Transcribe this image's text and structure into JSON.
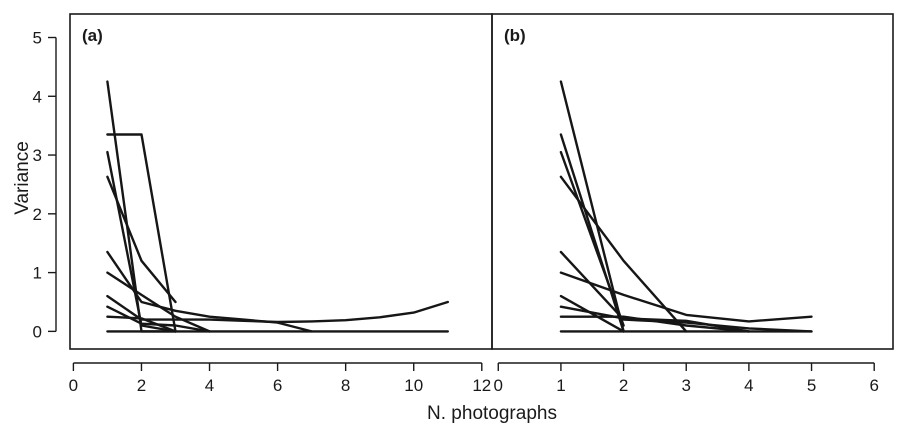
{
  "chart_data": {
    "type": "line",
    "xlabel": "N. photographs",
    "ylabel": "Variance",
    "ylim": [
      0,
      5
    ],
    "yticks": [
      0,
      1,
      2,
      3,
      4,
      5
    ],
    "grid": false,
    "legend": "none",
    "colors": {
      "line": "#161616",
      "frame": "#1a1a1a",
      "background": "#ffffff"
    },
    "panels": [
      {
        "label": "(a)",
        "xlim": [
          0,
          12
        ],
        "xticks": [
          0,
          2,
          4,
          6,
          8,
          10,
          12
        ],
        "series": [
          {
            "x": [
              1,
              2,
              3
            ],
            "y": [
              4.25,
              0.0,
              0.0
            ]
          },
          {
            "x": [
              1,
              2,
              3
            ],
            "y": [
              3.35,
              3.35,
              0.0
            ]
          },
          {
            "x": [
              1,
              2,
              3
            ],
            "y": [
              3.05,
              0.1,
              0.0
            ]
          },
          {
            "x": [
              1,
              2,
              3
            ],
            "y": [
              2.63,
              1.2,
              0.5
            ]
          },
          {
            "x": [
              1,
              2,
              3,
              4,
              5,
              6,
              7
            ],
            "y": [
              1.35,
              0.5,
              0.35,
              0.25,
              0.2,
              0.15,
              0.0
            ]
          },
          {
            "x": [
              1,
              2,
              3,
              4
            ],
            "y": [
              1.0,
              0.62,
              0.25,
              0.0
            ]
          },
          {
            "x": [
              1,
              2,
              3,
              4,
              5,
              6,
              7,
              8,
              9,
              10,
              11
            ],
            "y": [
              0.6,
              0.2,
              0.2,
              0.2,
              0.18,
              0.16,
              0.17,
              0.19,
              0.24,
              0.32,
              0.5
            ]
          },
          {
            "x": [
              1,
              2,
              3,
              4
            ],
            "y": [
              0.42,
              0.13,
              0.1,
              0.0
            ]
          },
          {
            "x": [
              1,
              2,
              3
            ],
            "y": [
              0.25,
              0.22,
              0.0
            ]
          },
          {
            "x": [
              1,
              11
            ],
            "y": [
              0.0,
              0.0
            ]
          }
        ]
      },
      {
        "label": "(b)",
        "xlim": [
          0,
          6
        ],
        "xticks": [
          0,
          1,
          2,
          3,
          4,
          5,
          6
        ],
        "series": [
          {
            "x": [
              1,
              2
            ],
            "y": [
              4.25,
              0.0
            ]
          },
          {
            "x": [
              1,
              2
            ],
            "y": [
              3.35,
              0.0
            ]
          },
          {
            "x": [
              1,
              2
            ],
            "y": [
              3.05,
              0.1
            ]
          },
          {
            "x": [
              1,
              2,
              3
            ],
            "y": [
              2.63,
              1.2,
              0.0
            ]
          },
          {
            "x": [
              1,
              2,
              3,
              4,
              5
            ],
            "y": [
              1.35,
              0.2,
              0.15,
              0.05,
              0.0
            ]
          },
          {
            "x": [
              1,
              2,
              3,
              4,
              5
            ],
            "y": [
              1.0,
              0.62,
              0.28,
              0.17,
              0.25
            ]
          },
          {
            "x": [
              1,
              2
            ],
            "y": [
              0.6,
              0.0
            ]
          },
          {
            "x": [
              1,
              2,
              3,
              4
            ],
            "y": [
              0.42,
              0.22,
              0.18,
              0.0
            ]
          },
          {
            "x": [
              1,
              2,
              3,
              4
            ],
            "y": [
              0.25,
              0.25,
              0.1,
              0.0
            ]
          },
          {
            "x": [
              1,
              5
            ],
            "y": [
              0.0,
              0.0
            ]
          }
        ]
      }
    ]
  }
}
